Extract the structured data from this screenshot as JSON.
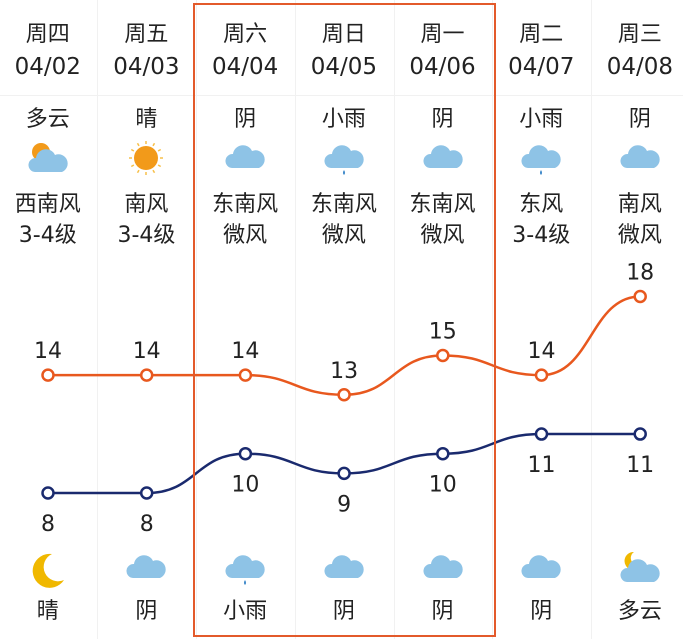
{
  "days": [
    {
      "weekday": "周四",
      "date": "04/02",
      "day_weather": "多云",
      "day_icon": "partly-cloudy",
      "wind_dir": "西南风",
      "wind_level": "3-4级",
      "high": 14,
      "low": 8,
      "night_icon": "moon",
      "night_weather": "晴"
    },
    {
      "weekday": "周五",
      "date": "04/03",
      "day_weather": "晴",
      "day_icon": "sunny",
      "wind_dir": "南风",
      "wind_level": "3-4级",
      "high": 14,
      "low": 8,
      "night_icon": "cloudy",
      "night_weather": "阴"
    },
    {
      "weekday": "周六",
      "date": "04/04",
      "day_weather": "阴",
      "day_icon": "cloudy",
      "wind_dir": "东南风",
      "wind_level": "微风",
      "high": 14,
      "low": 10,
      "night_icon": "light-rain",
      "night_weather": "小雨"
    },
    {
      "weekday": "周日",
      "date": "04/05",
      "day_weather": "小雨",
      "day_icon": "light-rain",
      "wind_dir": "东南风",
      "wind_level": "微风",
      "high": 13,
      "low": 9,
      "night_icon": "cloudy",
      "night_weather": "阴"
    },
    {
      "weekday": "周一",
      "date": "04/06",
      "day_weather": "阴",
      "day_icon": "cloudy",
      "wind_dir": "东南风",
      "wind_level": "微风",
      "high": 15,
      "low": 10,
      "night_icon": "cloudy",
      "night_weather": "阴"
    },
    {
      "weekday": "周二",
      "date": "04/07",
      "day_weather": "小雨",
      "day_icon": "light-rain",
      "wind_dir": "东风",
      "wind_level": "3-4级",
      "high": 14,
      "low": 11,
      "night_icon": "cloudy",
      "night_weather": "阴"
    },
    {
      "weekday": "周三",
      "date": "04/08",
      "day_weather": "阴",
      "day_icon": "cloudy",
      "wind_dir": "南风",
      "wind_level": "微风",
      "high": 18,
      "low": 11,
      "night_icon": "partly-cloudy-night",
      "night_weather": "多云"
    }
  ],
  "colors": {
    "high": "#e8581e",
    "low": "#1a2a6e",
    "highlight_box": "#e35a2b",
    "cloud": "#8ec3e6",
    "sun": "#f29a1a",
    "moon": "#f0b800"
  },
  "highlight": {
    "from_index": 2,
    "to_index": 4
  }
}
